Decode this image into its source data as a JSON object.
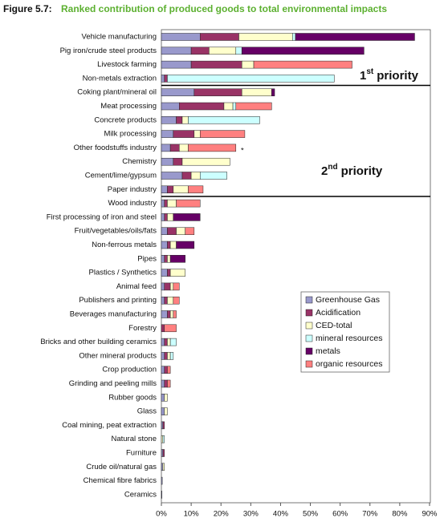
{
  "chart_data": {
    "type": "stacked-barh",
    "figure_label": "Figure 5.7:",
    "title": "Ranked contribution of produced goods to total environmental impacts",
    "categories": [
      "Vehicle manufacturing",
      "Pig iron/crude steel products",
      "Livestock farming",
      "Non-metals extraction",
      "Coking plant/mineral oil",
      "Meat processing",
      "Concrete products",
      "Milk processing",
      "Other foodstuffs industry",
      "Chemistry",
      "Cement/lime/gypsum",
      "Paper industry",
      "Wood industry",
      "First processing of iron and steel",
      "Fruit/vegetables/oils/fats",
      "Non-ferrous metals",
      "Pipes",
      "Plastics / Synthetics",
      "Animal feed",
      "Publishers and printing",
      "Beverages manufacturing",
      "Forestry",
      "Bricks and other building ceramics",
      "Other mineral products",
      "Crop production",
      "Grinding and peeling mills",
      "Rubber goods",
      "Glass",
      "Coal mining, peat extraction",
      "Natural stone",
      "Furniture",
      "Crude oil/natural gas",
      "Chemical fibre fabrics",
      "Ceramics"
    ],
    "series": [
      {
        "name": "Greenhouse Gas",
        "color": "#9999cc",
        "values": [
          13,
          10,
          10,
          1,
          11,
          6,
          5,
          4,
          3,
          4,
          7,
          2,
          1,
          1,
          2,
          2,
          1,
          2,
          1,
          1,
          2,
          0,
          1,
          1,
          1,
          1,
          1,
          1,
          0.5,
          0,
          0.5,
          0.5,
          0.3,
          0.2
        ]
      },
      {
        "name": "Acidification",
        "color": "#993366",
        "values": [
          13,
          6,
          17,
          1,
          16,
          15,
          2,
          7,
          3,
          3,
          3,
          2,
          1,
          1,
          3,
          1,
          1,
          1,
          2,
          1,
          1,
          1,
          1,
          1,
          1,
          1,
          0,
          0,
          0.5,
          0,
          0.5,
          0,
          0,
          0
        ]
      },
      {
        "name": "CED-total",
        "color": "#ffffcc",
        "values": [
          18,
          9,
          4,
          0,
          10,
          3,
          2,
          2,
          3,
          16,
          3,
          5,
          3,
          2,
          3,
          2,
          1,
          5,
          1,
          2,
          1,
          0,
          1,
          1,
          0,
          0,
          1,
          1,
          0,
          0.5,
          0,
          0.5,
          0,
          0
        ]
      },
      {
        "name": "mineral resources",
        "color": "#ccffff",
        "values": [
          1,
          2,
          0,
          56,
          0,
          1,
          24,
          0,
          0,
          0,
          9,
          0,
          0,
          0,
          0,
          0,
          0,
          0,
          0,
          0,
          0,
          0,
          2,
          1,
          0,
          0,
          0,
          0,
          0,
          0.5,
          0,
          0,
          0,
          0
        ]
      },
      {
        "name": "metals",
        "color": "#660066",
        "values": [
          40,
          41,
          0,
          0,
          1,
          0,
          0,
          0,
          0,
          0,
          0,
          0,
          0,
          9,
          0,
          6,
          5,
          0,
          0,
          0,
          0,
          0,
          0,
          0,
          0,
          0,
          0,
          0,
          0,
          0,
          0,
          0,
          0,
          0
        ]
      },
      {
        "name": "organic resources",
        "color": "#ff8080",
        "values": [
          0,
          0,
          33,
          0,
          0,
          12,
          0,
          15,
          16,
          0,
          0,
          5,
          8,
          0,
          3,
          0,
          0,
          0,
          2,
          2,
          1,
          4,
          0,
          0,
          1,
          1,
          0,
          0,
          0,
          0,
          0,
          0,
          0,
          0
        ]
      }
    ],
    "xlim": [
      0,
      90
    ],
    "xticks": [
      {
        "value": 0,
        "label": "0%"
      },
      {
        "value": 10,
        "label": "10%"
      },
      {
        "value": 20,
        "label": "20%"
      },
      {
        "value": 30,
        "label": "30%"
      },
      {
        "value": 40,
        "label": "40%"
      },
      {
        "value": 50,
        "label": "50%"
      },
      {
        "value": 60,
        "label": "60%"
      },
      {
        "value": 70,
        "label": "70%"
      },
      {
        "value": 80,
        "label": "80%"
      },
      {
        "value": 90,
        "label": "90%"
      }
    ],
    "priority_1": {
      "number": "1",
      "suffix": "st",
      "label": "priority"
    },
    "priority_2": {
      "number": "2",
      "suffix": "nd",
      "label": "priority"
    },
    "note_mark": "*"
  }
}
